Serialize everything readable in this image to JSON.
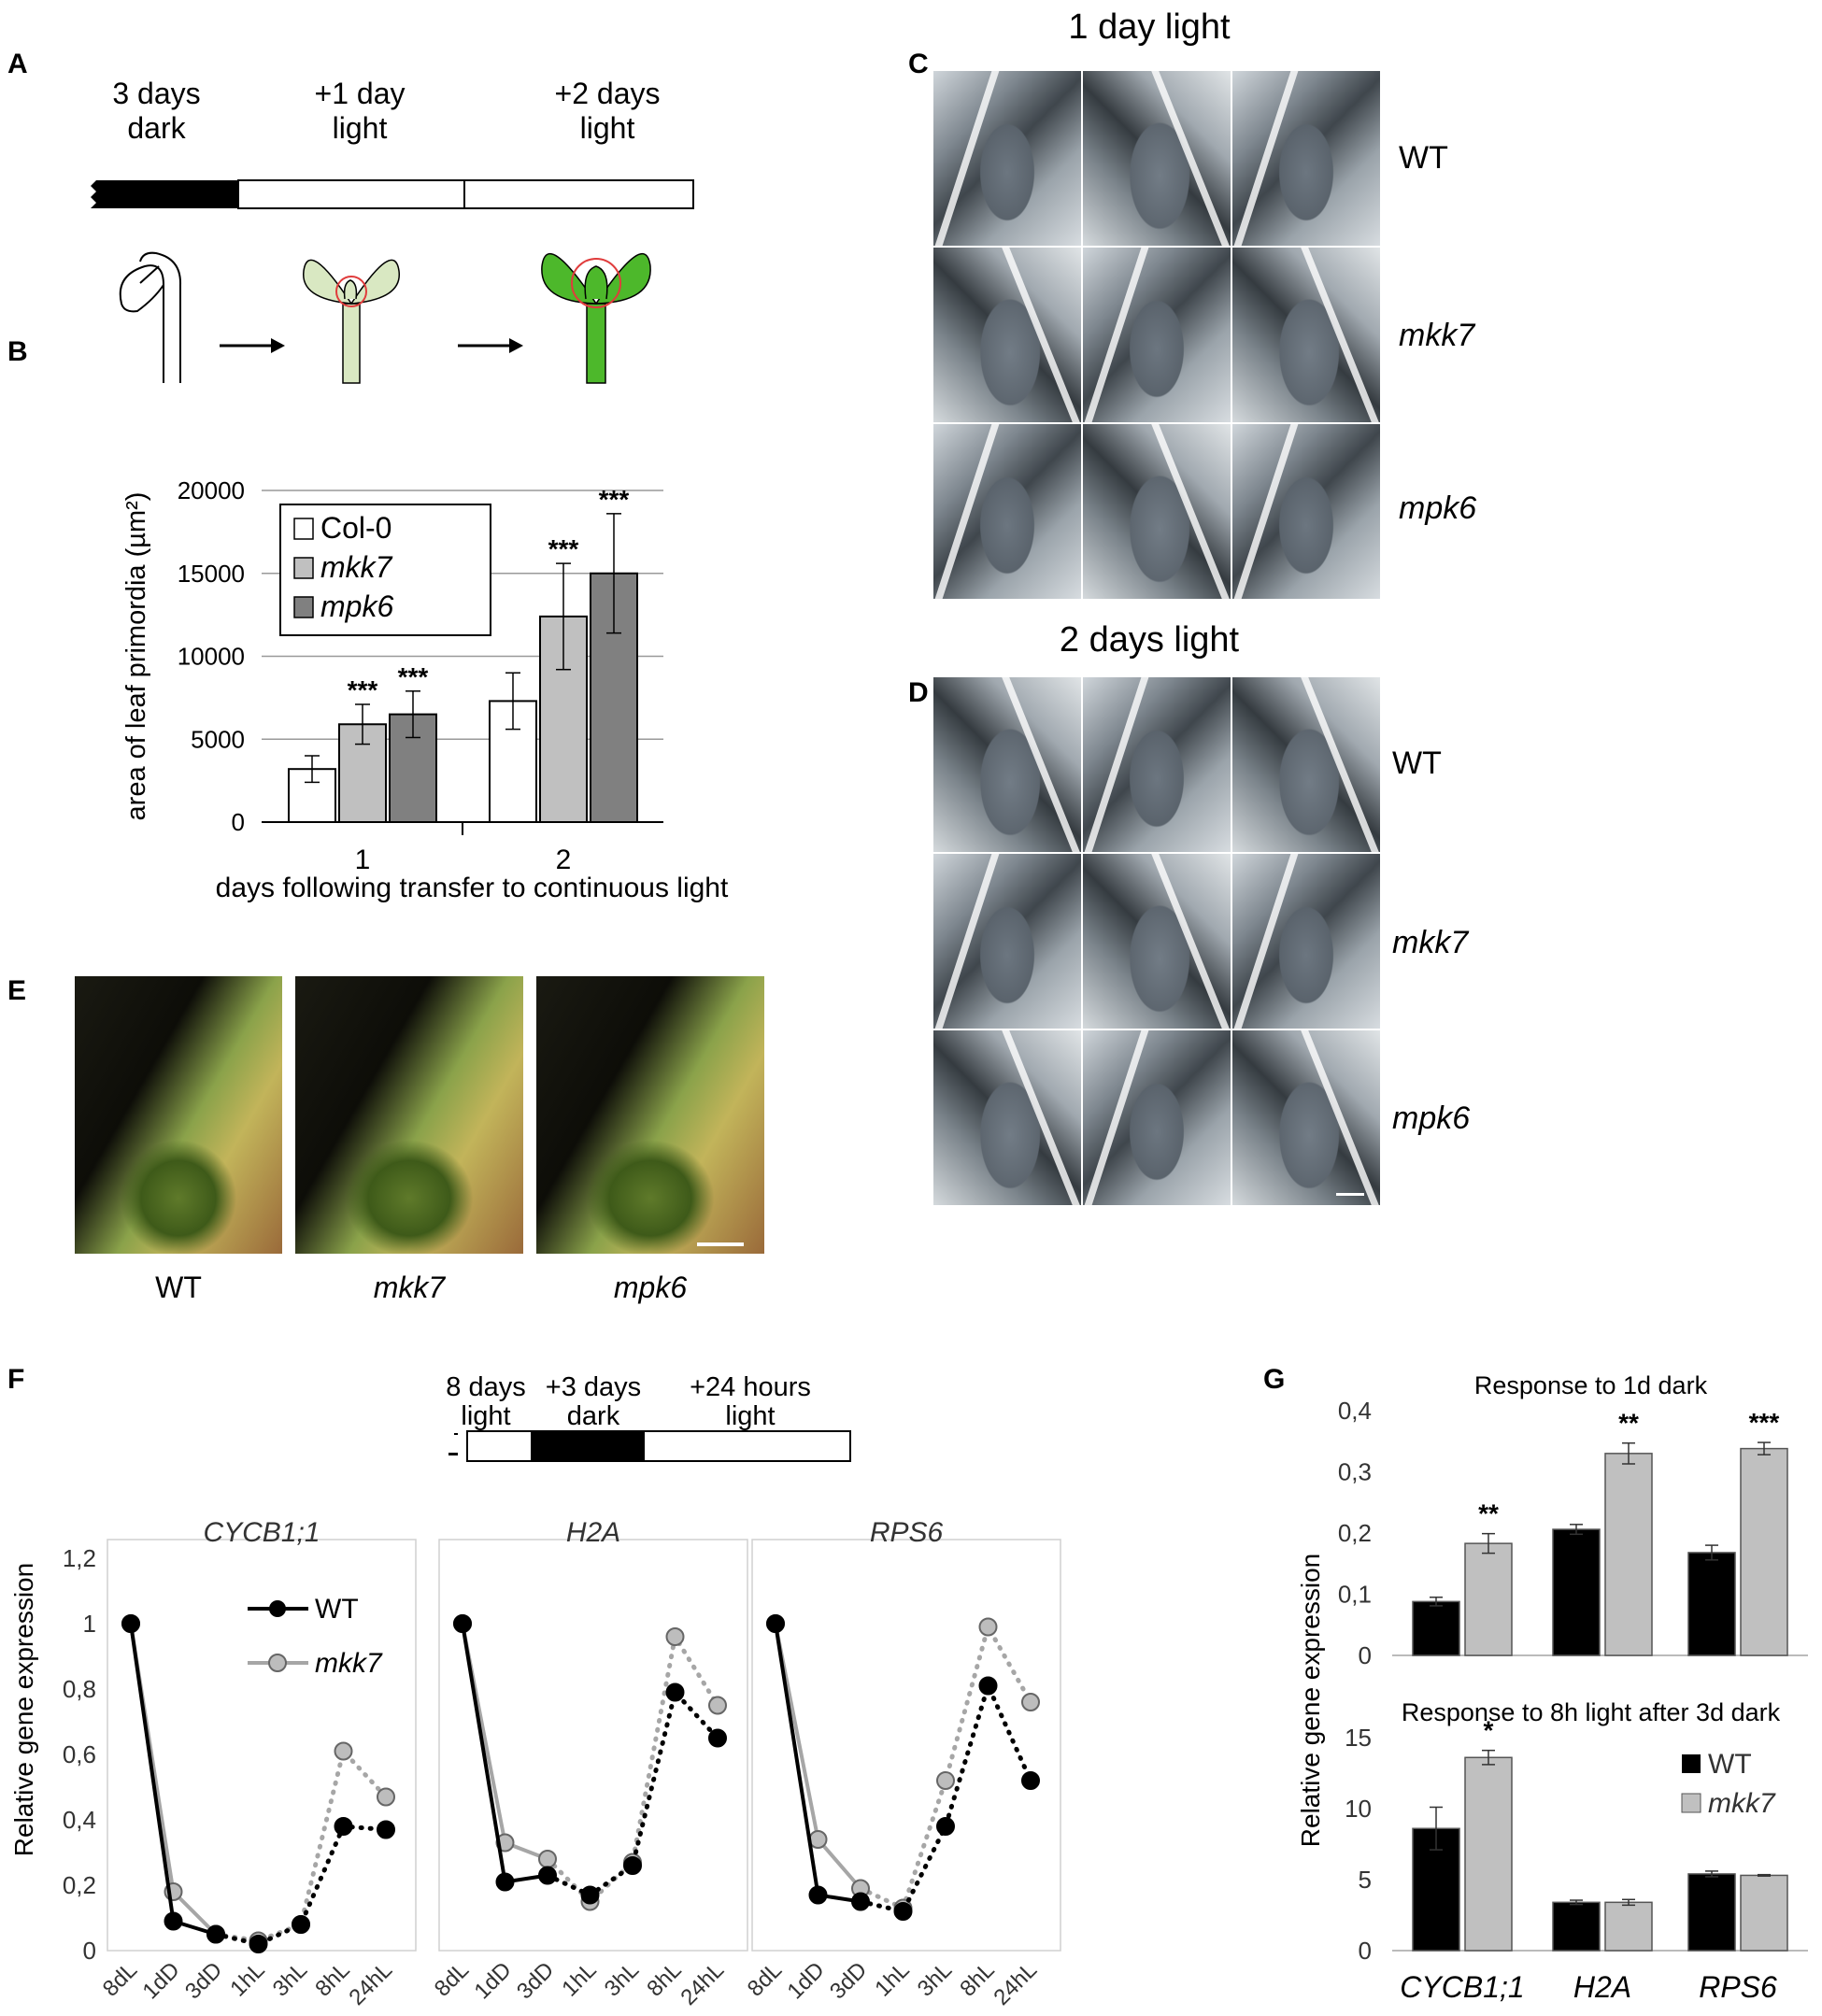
{
  "panel_labels": {
    "A": "A",
    "B": "B",
    "C": "C",
    "D": "D",
    "E": "E",
    "F": "F",
    "G": "G"
  },
  "panelA": {
    "stages": [
      {
        "line1": "3 days",
        "line2": "dark"
      },
      {
        "line1": "+1 day",
        "line2": "light"
      },
      {
        "line1": "+2 days",
        "line2": "light"
      }
    ]
  },
  "panelC": {
    "title": "1 day light",
    "rows": [
      "WT",
      "mkk7",
      "mpk6"
    ]
  },
  "panelD": {
    "title": "2 days light",
    "rows": [
      "WT",
      "mkk7",
      "mpk6"
    ]
  },
  "panelE": {
    "labels": [
      "WT",
      "mkk7",
      "mpk6"
    ]
  },
  "panelF": {
    "timeline": [
      {
        "line1": "8 days",
        "line2": "light"
      },
      {
        "line1": "+3 days",
        "line2": "dark"
      },
      {
        "line1": "+24 hours",
        "line2": "light"
      }
    ],
    "ylabel": "Relative  gene expression",
    "legend": [
      "WT",
      "mkk7"
    ]
  },
  "colors": {
    "wt": "#000000",
    "mkk7": "#a6a6a6",
    "col0": "#ffffff",
    "mpk6": "#808080",
    "leaf_green": "#4db82b",
    "pale_green": "#d9e8c2",
    "circle": "#e03c3c"
  },
  "chart_data": [
    {
      "type": "bar",
      "id": "B",
      "title": "",
      "xlabel": "days following transfer to continuous light",
      "ylabel": "area of leaf primordia (µm²)",
      "ylim": [
        0,
        20000
      ],
      "yticks": [
        0,
        5000,
        10000,
        15000,
        20000
      ],
      "categories": [
        "1",
        "2"
      ],
      "series": [
        {
          "name": "Col-0",
          "values": [
            3200,
            7300
          ],
          "errors": [
            800,
            1700
          ],
          "sig": [
            "",
            ""
          ]
        },
        {
          "name": "mkk7",
          "values": [
            5900,
            12400
          ],
          "errors": [
            1200,
            3200
          ],
          "sig": [
            "***",
            "***"
          ]
        },
        {
          "name": "mpk6",
          "values": [
            6500,
            15000
          ],
          "errors": [
            1400,
            3600
          ],
          "sig": [
            "***",
            "***"
          ]
        }
      ],
      "legend_position": "top-left",
      "grid": true
    },
    {
      "type": "line",
      "id": "F1",
      "title": "CYCB1;1",
      "ylabel": "Relative  gene expression",
      "ylim": [
        0,
        1.2
      ],
      "yticks": [
        "0",
        "0,2",
        "0,4",
        "0,6",
        "0,8",
        "1",
        "1,2"
      ],
      "x": [
        "8dL",
        "1dD",
        "3dD",
        "1hL",
        "3hL",
        "8hL",
        "24hL"
      ],
      "series": [
        {
          "name": "WT",
          "values": [
            1.0,
            0.09,
            0.05,
            0.02,
            0.08,
            0.38,
            0.37
          ]
        },
        {
          "name": "mkk7",
          "values": [
            1.0,
            0.18,
            0.05,
            0.03,
            0.08,
            0.61,
            0.47
          ]
        }
      ]
    },
    {
      "type": "line",
      "id": "F2",
      "title": "H2A",
      "ylim": [
        0,
        1.2
      ],
      "x": [
        "8dL",
        "1dD",
        "3dD",
        "1hL",
        "3hL",
        "8hL",
        "24hL"
      ],
      "series": [
        {
          "name": "WT",
          "values": [
            1.0,
            0.21,
            0.23,
            0.17,
            0.26,
            0.79,
            0.65
          ]
        },
        {
          "name": "mkk7",
          "values": [
            1.0,
            0.33,
            0.28,
            0.15,
            0.27,
            0.96,
            0.75
          ]
        }
      ]
    },
    {
      "type": "line",
      "id": "F3",
      "title": "RPS6",
      "ylim": [
        0,
        1.2
      ],
      "x": [
        "8dL",
        "1dD",
        "3dD",
        "1hL",
        "3hL",
        "8hL",
        "24hL"
      ],
      "series": [
        {
          "name": "WT",
          "values": [
            1.0,
            0.17,
            0.15,
            0.12,
            0.38,
            0.81,
            0.52
          ]
        },
        {
          "name": "mkk7",
          "values": [
            1.0,
            0.34,
            0.19,
            0.13,
            0.52,
            0.99,
            0.76
          ]
        }
      ]
    },
    {
      "type": "bar",
      "id": "G1",
      "title": "Response  to 1d dark",
      "ylim": [
        0,
        0.4
      ],
      "yticks": [
        "0",
        "0,1",
        "0,2",
        "0,3",
        "0,4"
      ],
      "categories": [
        "CYCB1;1",
        "H2A",
        "RPS6"
      ],
      "series": [
        {
          "name": "WT",
          "values": [
            0.088,
            0.206,
            0.168
          ],
          "errors": [
            0.007,
            0.008,
            0.012
          ]
        },
        {
          "name": "mkk7",
          "values": [
            0.183,
            0.33,
            0.338
          ],
          "errors": [
            0.016,
            0.017,
            0.01
          ]
        }
      ],
      "sig": [
        "**",
        "**",
        "***"
      ]
    },
    {
      "type": "bar",
      "id": "G2",
      "title": "Response  to 8h light after 3d dark",
      "ylabel": "Relative  gene expression",
      "ylim": [
        0,
        15
      ],
      "yticks": [
        "0",
        "5",
        "10",
        "15"
      ],
      "categories": [
        "CYCB1;1",
        "H2A",
        "RPS6"
      ],
      "series": [
        {
          "name": "WT",
          "values": [
            8.6,
            3.4,
            5.4
          ],
          "errors": [
            1.5,
            0.15,
            0.2
          ]
        },
        {
          "name": "mkk7",
          "values": [
            13.6,
            3.4,
            5.3
          ],
          "errors": [
            0.5,
            0.2,
            0.05
          ]
        }
      ],
      "sig": [
        "*",
        "",
        ""
      ],
      "legend": [
        "WT",
        "mkk7"
      ]
    }
  ]
}
